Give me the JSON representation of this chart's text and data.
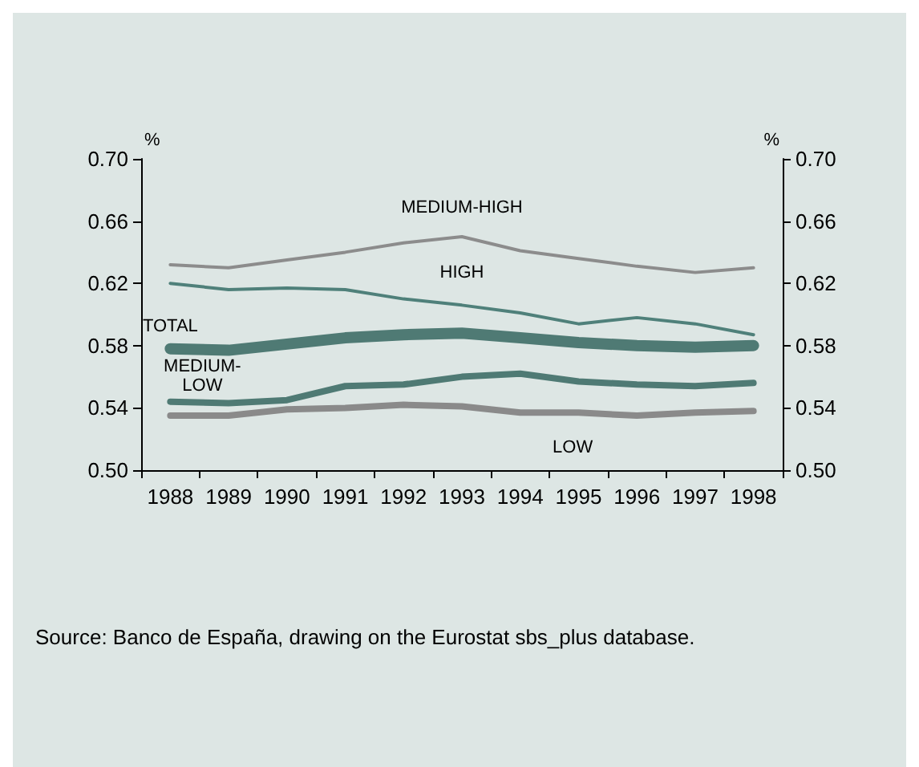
{
  "chart_data": {
    "type": "line",
    "categories": [
      "1988",
      "1989",
      "1990",
      "1991",
      "1992",
      "1993",
      "1994",
      "1995",
      "1996",
      "1997",
      "1998"
    ],
    "series": [
      {
        "name": "MEDIUM-HIGH",
        "color": "#8c8c8c",
        "values": [
          0.632,
          0.63,
          0.635,
          0.64,
          0.646,
          0.65,
          0.641,
          0.636,
          0.631,
          0.627,
          0.63
        ]
      },
      {
        "name": "HIGH",
        "color": "#4f807a",
        "values": [
          0.62,
          0.616,
          0.617,
          0.616,
          0.61,
          0.606,
          0.601,
          0.594,
          0.598,
          0.594,
          0.587
        ]
      },
      {
        "name": "TOTAL",
        "color": "#4f7a74",
        "values": [
          0.578,
          0.577,
          0.581,
          0.585,
          0.587,
          0.588,
          0.585,
          0.582,
          0.58,
          0.579,
          0.58
        ]
      },
      {
        "name": "MEDIUM-LOW",
        "color": "#4f7a74",
        "values": [
          0.544,
          0.543,
          0.545,
          0.554,
          0.555,
          0.56,
          0.562,
          0.557,
          0.555,
          0.554,
          0.556
        ]
      },
      {
        "name": "LOW",
        "color": "#8a8a8a",
        "values": [
          0.535,
          0.535,
          0.539,
          0.54,
          0.542,
          0.541,
          0.537,
          0.537,
          0.535,
          0.537,
          0.538
        ]
      }
    ],
    "ylabel": "%",
    "y2label": "%",
    "ylim": [
      0.5,
      0.7
    ],
    "yticks": [
      {
        "value": 0.5,
        "label": "0.50"
      },
      {
        "value": 0.54,
        "label": "0.54"
      },
      {
        "value": 0.58,
        "label": "0.58"
      },
      {
        "value": 0.62,
        "label": "0.62"
      },
      {
        "value": 0.66,
        "label": "0.66"
      },
      {
        "value": 0.7,
        "label": "0.70"
      }
    ],
    "y2lim": [
      0.5,
      0.7
    ],
    "y2ticks": [
      {
        "value": 0.5,
        "label": "0.50"
      },
      {
        "value": 0.54,
        "label": "0.54"
      },
      {
        "value": 0.58,
        "label": "0.58"
      },
      {
        "value": 0.62,
        "label": "0.62"
      },
      {
        "value": 0.66,
        "label": "0.66"
      },
      {
        "value": 0.7,
        "label": "0.70"
      }
    ],
    "grid": false,
    "legend": false,
    "marker": "none",
    "line_style": "solid",
    "annotations": [
      "Source: Banco de España, drawing on the Eurostat sbs_plus database."
    ]
  }
}
